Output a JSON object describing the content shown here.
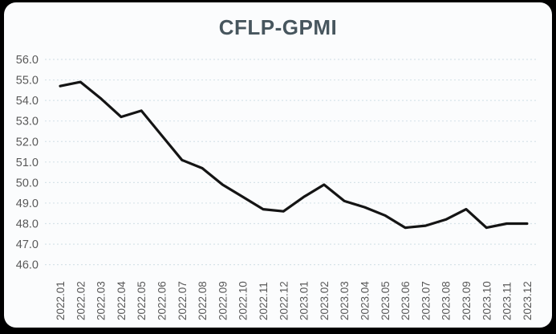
{
  "window": {
    "background": "#000000",
    "card_background": "#fbfcfd"
  },
  "chart_data": {
    "type": "line",
    "title": "CFLP-GPMI",
    "categories": [
      "2022.01",
      "2022.02",
      "2022.03",
      "2022.04",
      "2022.05",
      "2022.06",
      "2022.07",
      "2022.08",
      "2022.09",
      "2022.10",
      "2022.11",
      "2022.12",
      "2023.01",
      "2023.02",
      "2023.03",
      "2023.04",
      "2023.05",
      "2023.06",
      "2023.07",
      "2023.08",
      "2023.09",
      "2023.10",
      "2023.11",
      "2023.12"
    ],
    "series": [
      {
        "name": "CFLP-GPMI",
        "values": [
          54.7,
          54.9,
          54.1,
          53.2,
          53.5,
          52.3,
          51.1,
          50.7,
          49.9,
          49.3,
          48.7,
          48.6,
          49.3,
          49.9,
          49.1,
          48.8,
          48.4,
          47.8,
          47.9,
          48.2,
          48.7,
          47.8,
          48.0,
          48.0
        ]
      }
    ],
    "ylim": [
      46.0,
      56.0
    ],
    "ytick_labels": [
      "56.0",
      "55.0",
      "54.0",
      "53.0",
      "52.0",
      "51.0",
      "50.0",
      "49.0",
      "48.0",
      "47.0",
      "46.0"
    ],
    "grid": "horizontal-dashed",
    "legend": "none",
    "xlabel": "",
    "ylabel": "",
    "colors": {
      "title": "#47565e",
      "tick_label": "#595959",
      "gridline": "#d7e3e9",
      "line": "#141414"
    }
  }
}
